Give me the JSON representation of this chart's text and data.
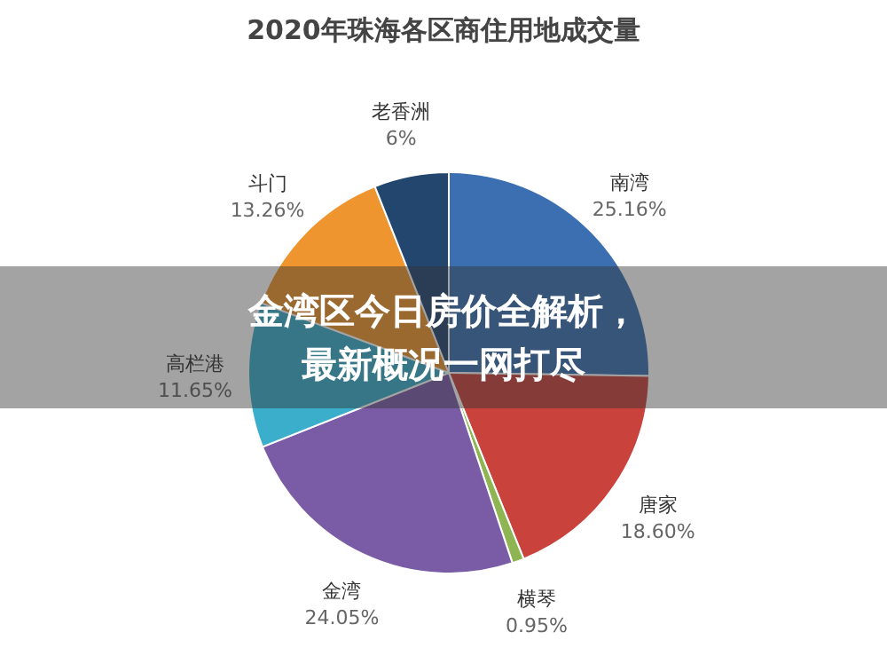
{
  "chart_data": {
    "type": "pie",
    "title": "2020年珠海各区商住用地成交量",
    "categories": [
      "南湾",
      "唐家",
      "横琴",
      "金湾",
      "高栏港",
      "斗门",
      "老香洲"
    ],
    "values": [
      25.16,
      18.6,
      0.95,
      24.05,
      11.65,
      13.26,
      6
    ],
    "colors": [
      "#3b6fb2",
      "#c9423b",
      "#8fb553",
      "#7a5ca6",
      "#3aaecb",
      "#ef952f",
      "#23466f"
    ],
    "value_labels": [
      "25.16%",
      "18.60%",
      "0.95%",
      "24.05%",
      "11.65%",
      "13.26%",
      "6%"
    ],
    "annotations": [
      "金湾区今日房价全解析，最新概况一网打尽"
    ]
  }
}
